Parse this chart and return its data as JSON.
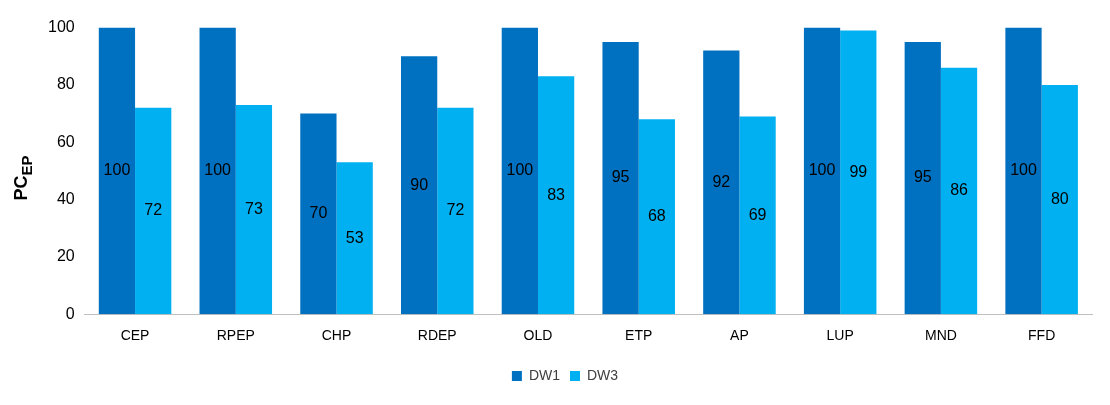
{
  "chart_data": {
    "type": "bar",
    "ylabel": "PC$_{EP}$",
    "categories": [
      "CEP",
      "RPEP",
      "CHP",
      "RDEP",
      "OLD",
      "ETP",
      "AP",
      "LUP",
      "MND",
      "FFD"
    ],
    "series": [
      {
        "name": "DW1",
        "color": "#0070c0",
        "values": [
          100,
          100,
          70,
          90,
          100,
          95,
          92,
          100,
          95,
          100
        ]
      },
      {
        "name": "DW3",
        "color": "#00b0f0",
        "values": [
          72,
          73,
          53,
          72,
          83,
          68,
          69,
          99,
          86,
          80
        ]
      }
    ],
    "ylim": [
      0,
      100
    ],
    "yticks": [
      0,
      20,
      40,
      60,
      80,
      100
    ],
    "grid": false,
    "legend": "bottom",
    "data_labels": true
  }
}
